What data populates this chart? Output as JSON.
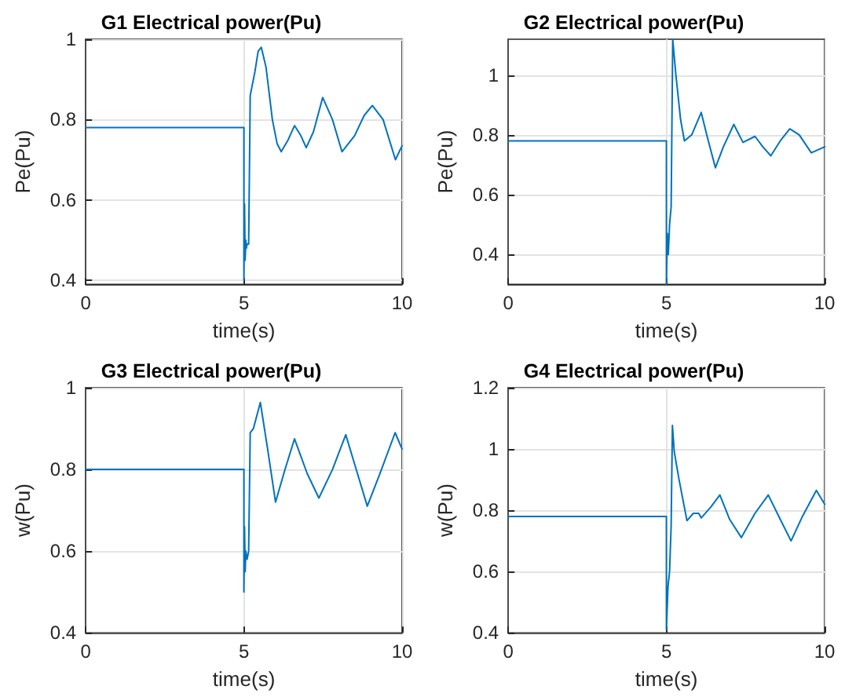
{
  "chart_data": [
    {
      "type": "line",
      "title": "G1 Electrical power(Pu)",
      "xlabel": "time(s)",
      "ylabel": "Pe(Pu)",
      "xlim": [
        0,
        10
      ],
      "xticks": [
        0,
        5,
        10
      ],
      "ylim": [
        0.39,
        1
      ],
      "yticks": [
        0.4,
        0.6,
        0.8,
        1
      ],
      "grid": true,
      "marker": "none",
      "line_style": "solid",
      "series": [
        {
          "color": "#0072bd",
          "x": [
            0,
            5,
            5,
            5.02,
            5.04,
            5.06,
            5.08,
            5.1,
            5.15,
            5.18,
            5.2,
            5.25,
            5.35,
            5.45,
            5.55,
            5.7,
            5.9,
            6.05,
            6.18,
            6.4,
            6.6,
            6.8,
            6.97,
            7.2,
            7.49,
            7.8,
            8.1,
            8.5,
            8.8,
            9.06,
            9.4,
            9.79,
            10
          ],
          "values": [
            0.78,
            0.78,
            0.4,
            0.59,
            0.45,
            0.5,
            0.48,
            0.49,
            0.49,
            0.49,
            0.86,
            0.88,
            0.92,
            0.97,
            0.98,
            0.93,
            0.8,
            0.74,
            0.72,
            0.75,
            0.785,
            0.76,
            0.73,
            0.77,
            0.855,
            0.8,
            0.72,
            0.76,
            0.81,
            0.835,
            0.8,
            0.7,
            0.735
          ]
        }
      ]
    },
    {
      "type": "line",
      "title": "G2 Electrical power(Pu)",
      "xlabel": "time(s)",
      "ylabel": "Pe(Pu)",
      "xlim": [
        0,
        10
      ],
      "xticks": [
        0,
        5,
        10
      ],
      "ylim": [
        0.3,
        1.12
      ],
      "yticks": [
        0.4,
        0.6,
        0.8,
        1
      ],
      "grid": true,
      "marker": "none",
      "line_style": "solid",
      "series": [
        {
          "color": "#0072bd",
          "x": [
            0,
            5,
            5,
            5.03,
            5.06,
            5.1,
            5.15,
            5.2,
            5.3,
            5.45,
            5.57,
            5.8,
            6.1,
            6.3,
            6.55,
            6.8,
            7.13,
            7.42,
            7.8,
            8.05,
            8.3,
            8.6,
            8.9,
            9.2,
            9.58,
            10
          ],
          "values": [
            0.78,
            0.78,
            0.3,
            0.47,
            0.4,
            0.5,
            0.56,
            1.12,
            1.0,
            0.85,
            0.78,
            0.8,
            0.875,
            0.79,
            0.69,
            0.76,
            0.835,
            0.775,
            0.795,
            0.76,
            0.73,
            0.78,
            0.82,
            0.8,
            0.74,
            0.76
          ]
        }
      ]
    },
    {
      "type": "line",
      "title": "G3 Electrical power(Pu)",
      "xlabel": "time(s)",
      "ylabel": "w(Pu)",
      "xlim": [
        0,
        10
      ],
      "xticks": [
        0,
        5,
        10
      ],
      "ylim": [
        0.4,
        1
      ],
      "yticks": [
        0.4,
        0.6,
        0.8,
        1
      ],
      "grid": true,
      "marker": "none",
      "line_style": "solid",
      "series": [
        {
          "color": "#0072bd",
          "x": [
            0,
            5,
            5,
            5.02,
            5.04,
            5.06,
            5.1,
            5.15,
            5.18,
            5.2,
            5.3,
            5.52,
            5.75,
            6.0,
            6.3,
            6.6,
            7.0,
            7.37,
            7.8,
            8.22,
            8.55,
            8.9,
            9.3,
            9.78,
            10
          ],
          "values": [
            0.8,
            0.8,
            0.5,
            0.66,
            0.55,
            0.6,
            0.58,
            0.6,
            0.6,
            0.89,
            0.9,
            0.964,
            0.85,
            0.72,
            0.8,
            0.875,
            0.79,
            0.73,
            0.8,
            0.885,
            0.8,
            0.71,
            0.79,
            0.89,
            0.85
          ]
        }
      ]
    },
    {
      "type": "line",
      "title": "G4 Electrical power(Pu)",
      "xlabel": "time(s)",
      "ylabel": "w(Pu)",
      "xlim": [
        0,
        10
      ],
      "xticks": [
        0,
        5,
        10
      ],
      "ylim": [
        0.4,
        1.2
      ],
      "yticks": [
        0.4,
        0.6,
        0.8,
        1,
        1.2
      ],
      "grid": true,
      "marker": "none",
      "line_style": "solid",
      "series": [
        {
          "color": "#0072bd",
          "x": [
            0,
            5,
            5,
            5.05,
            5.1,
            5.15,
            5.19,
            5.25,
            5.4,
            5.65,
            5.85,
            6.02,
            6.1,
            6.4,
            6.69,
            7.0,
            7.37,
            7.8,
            8.22,
            8.6,
            8.94,
            9.3,
            9.74,
            10
          ],
          "values": [
            0.78,
            0.78,
            0.41,
            0.55,
            0.6,
            0.75,
            1.077,
            0.99,
            0.9,
            0.766,
            0.79,
            0.79,
            0.775,
            0.81,
            0.85,
            0.77,
            0.711,
            0.79,
            0.85,
            0.77,
            0.7,
            0.78,
            0.865,
            0.82
          ]
        }
      ]
    }
  ]
}
